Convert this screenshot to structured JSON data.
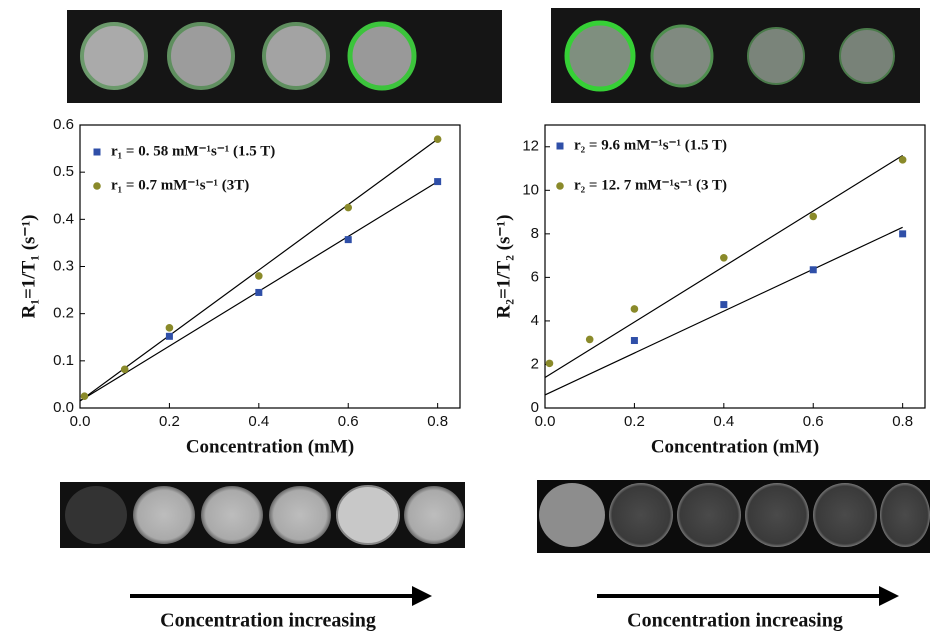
{
  "chart_data": [
    {
      "type": "scatter",
      "x_label": "Concentration (mM)",
      "y_label": "R₁=1/T₁ (s⁻¹)",
      "xlim": [
        0,
        0.85
      ],
      "ylim": [
        0,
        0.6
      ],
      "xticks": [
        {
          "value": 0,
          "label": "0.0"
        },
        0.2,
        0.4,
        0.6,
        0.8
      ],
      "yticks": [
        {
          "value": 0,
          "label": "0.0"
        },
        0.1,
        0.2,
        0.3,
        0.4,
        0.5,
        0.6
      ],
      "series": [
        {
          "name": "r₁ = 0. 58 mM⁻¹s⁻¹ (1.5 T)",
          "color": "#2f4fa8",
          "marker": "square",
          "x": [
            0.2,
            0.4,
            0.6,
            0.8
          ],
          "values": [
            0.152,
            0.245,
            0.357,
            0.48
          ],
          "fit": {
            "x": [
              0,
              0.8
            ],
            "y": [
              0.015,
              0.48
            ]
          }
        },
        {
          "name": "r₁ = 0.7 mM⁻¹s⁻¹ (3T)",
          "color": "#8a8a2a",
          "marker": "circle",
          "x": [
            0.01,
            0.1,
            0.2,
            0.4,
            0.6,
            0.8
          ],
          "values": [
            0.025,
            0.082,
            0.17,
            0.28,
            0.425,
            0.57
          ],
          "fit": {
            "x": [
              0,
              0.8
            ],
            "y": [
              0.015,
              0.57
            ]
          }
        }
      ]
    },
    {
      "type": "scatter",
      "x_label": "Concentration (mM)",
      "y_label": "R₂=1/T₂ (s⁻¹)",
      "xlim": [
        0,
        0.85
      ],
      "ylim": [
        0,
        13
      ],
      "xticks": [
        {
          "value": 0,
          "label": "0.0"
        },
        0.2,
        0.4,
        0.6,
        0.8
      ],
      "yticks": [
        0,
        2,
        4,
        6,
        8,
        10,
        12
      ],
      "series": [
        {
          "name": "r₂ = 9.6 mM⁻¹s⁻¹ (1.5 T)",
          "color": "#2f4fa8",
          "marker": "square",
          "x": [
            0.2,
            0.4,
            0.6,
            0.8
          ],
          "values": [
            3.1,
            4.75,
            6.35,
            8.0
          ],
          "fit": {
            "x": [
              0,
              0.8
            ],
            "y": [
              0.6,
              8.3
            ]
          }
        },
        {
          "name": "r₂ = 12. 7 mM⁻¹s⁻¹ (3 T)",
          "color": "#8a8a2a",
          "marker": "circle",
          "x": [
            0.01,
            0.1,
            0.2,
            0.4,
            0.6,
            0.8
          ],
          "values": [
            2.05,
            3.15,
            4.55,
            6.9,
            8.8,
            11.4
          ],
          "fit": {
            "x": [
              0,
              0.8
            ],
            "y": [
              1.4,
              11.6
            ]
          }
        }
      ]
    }
  ],
  "annotations": [
    "Concentration increasing",
    "Concentration increasing"
  ]
}
